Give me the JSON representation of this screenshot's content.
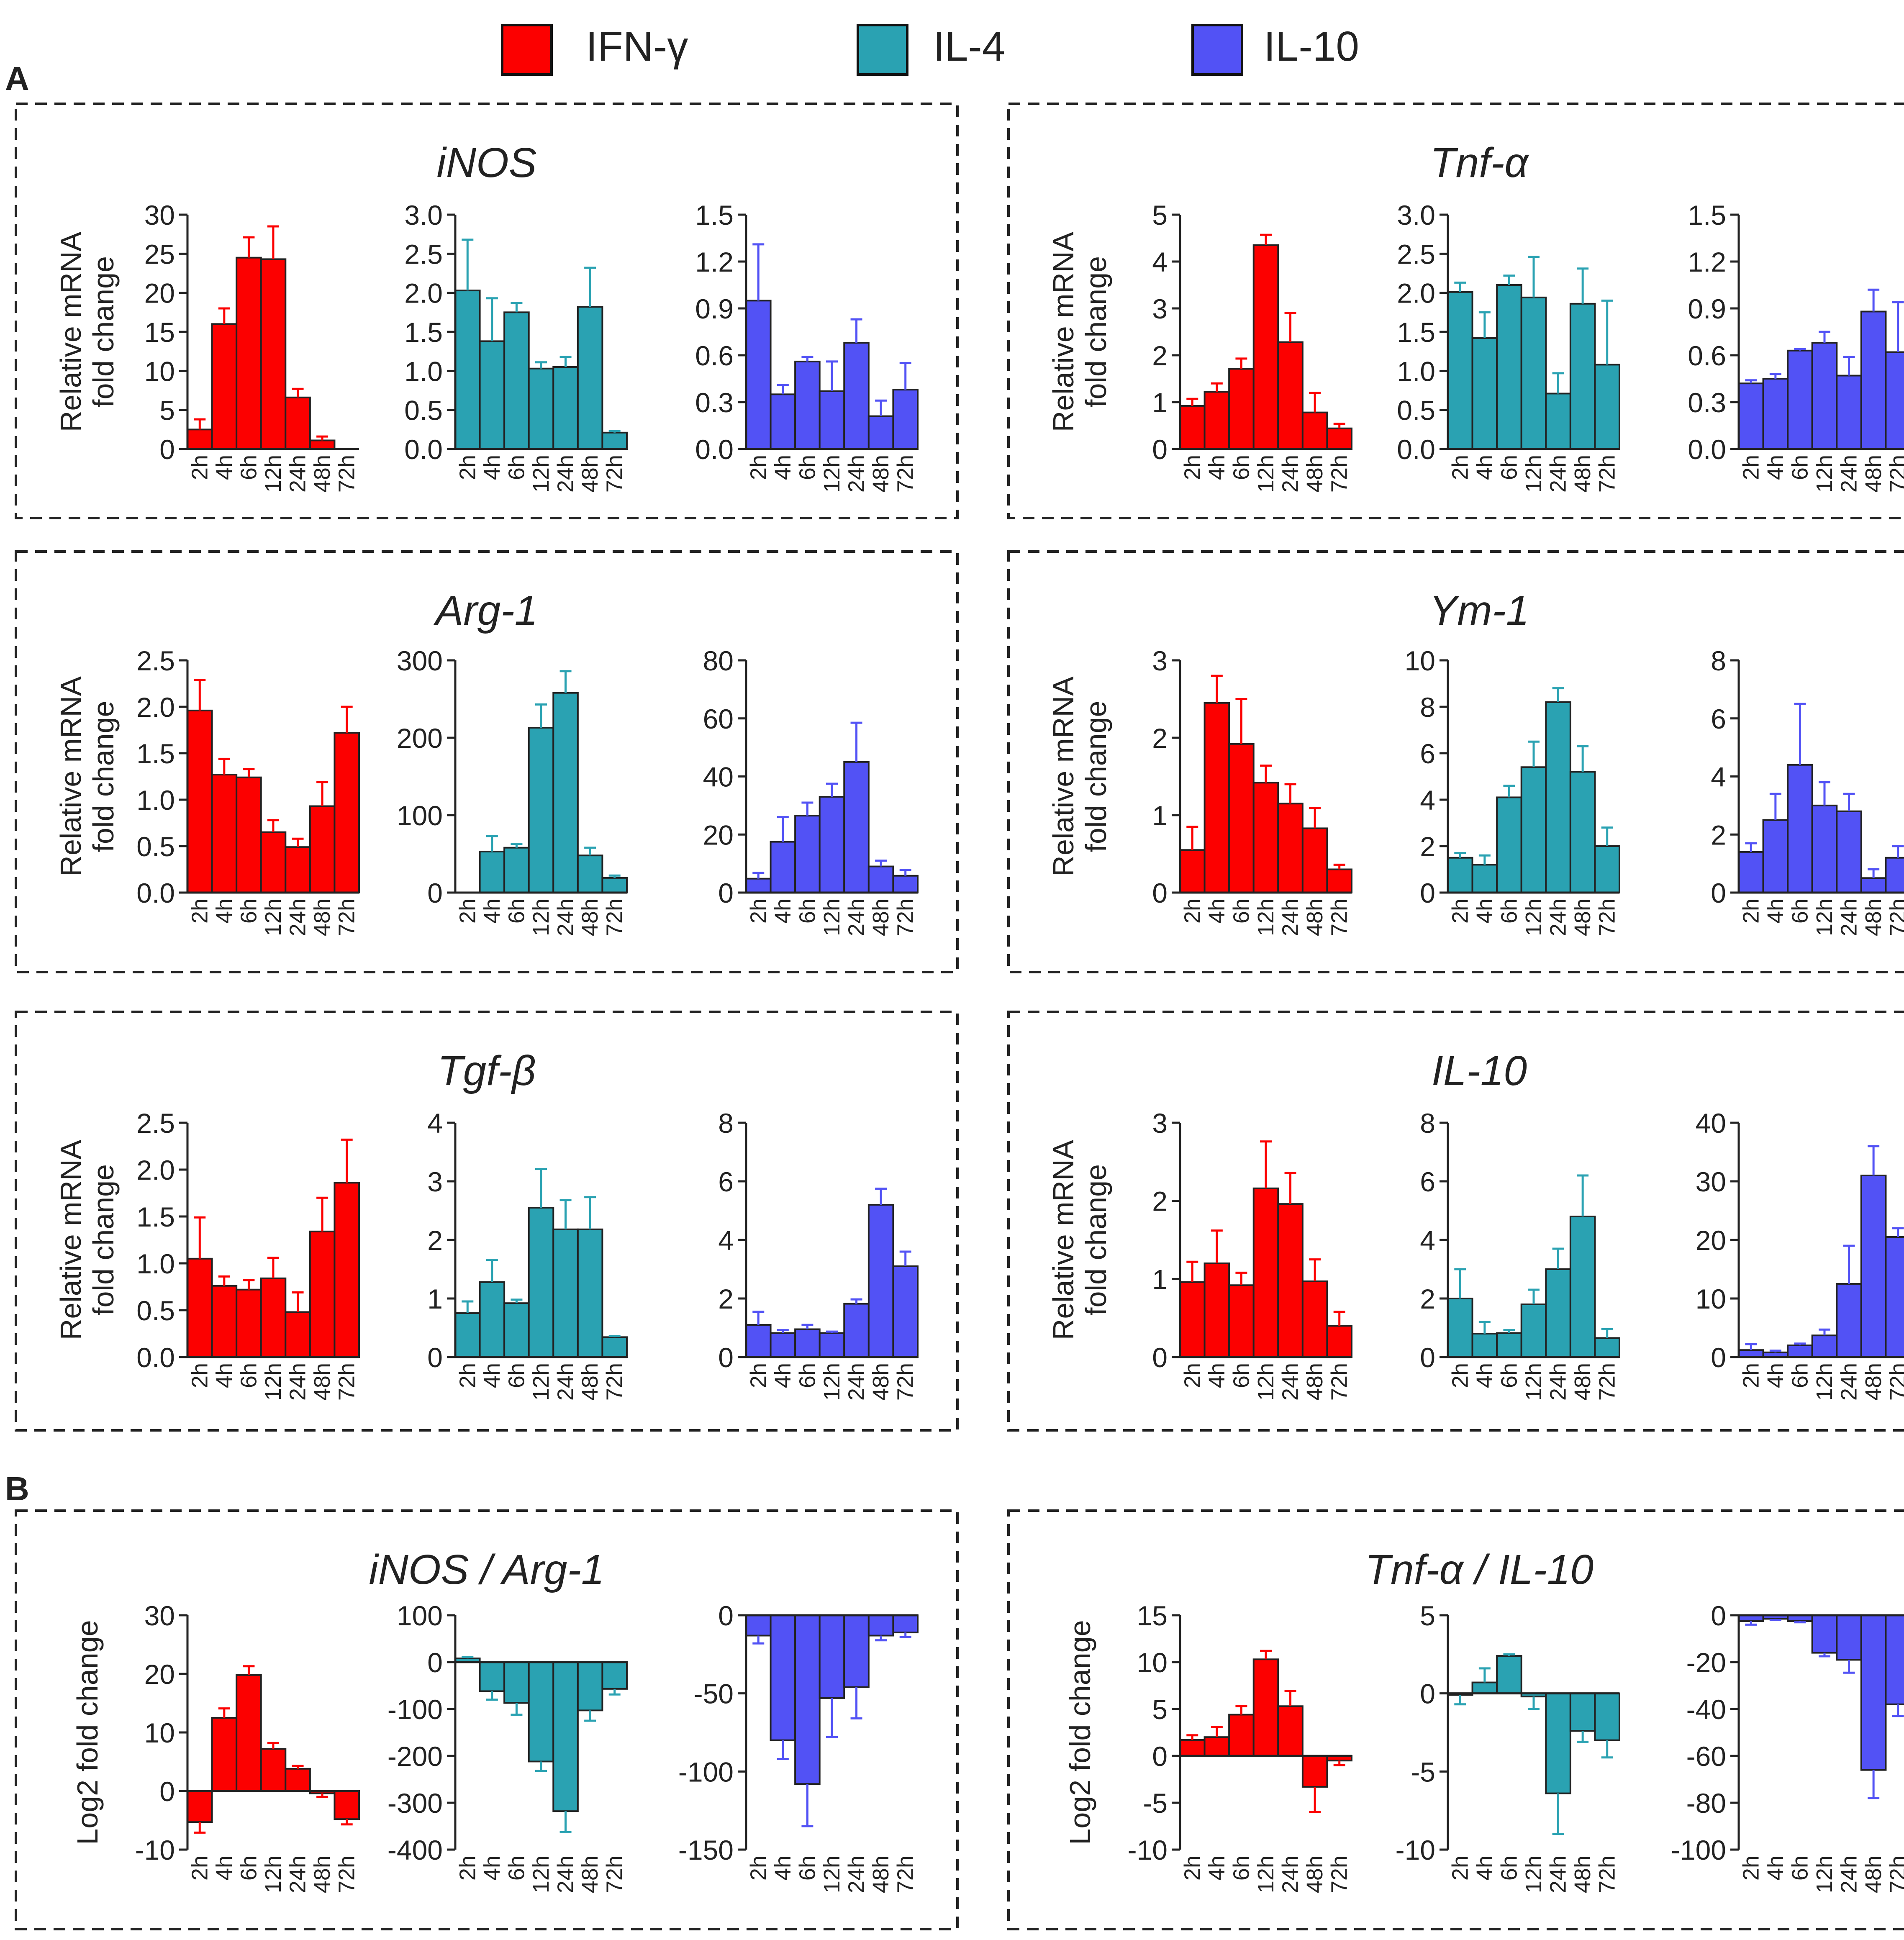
{
  "legend": {
    "entries": [
      {
        "name": "IFN-γ",
        "color": "#fc0000"
      },
      {
        "name": "IL-4",
        "color": "#2aa2b2"
      },
      {
        "name": "IL-10",
        "color": "#5252f5"
      }
    ]
  },
  "section_labels": [
    "A",
    "B"
  ],
  "ylabels": {
    "relative": [
      "Relative mRNA",
      "fold change"
    ],
    "log2": "Log2 fold change"
  },
  "categories": [
    "2h",
    "4h",
    "6h",
    "12h",
    "24h",
    "48h",
    "72h"
  ],
  "panels": [
    {
      "title": "iNOS",
      "col": 0,
      "row": 0,
      "ylabel": "relative"
    },
    {
      "title": "Tnf-α",
      "col": 1,
      "row": 0,
      "ylabel": "relative"
    },
    {
      "title": "Arg-1",
      "col": 0,
      "row": 1,
      "ylabel": "relative"
    },
    {
      "title": "Ym-1",
      "col": 1,
      "row": 1,
      "ylabel": "relative"
    },
    {
      "title": "Tgf-β",
      "col": 0,
      "row": 2,
      "ylabel": "relative"
    },
    {
      "title": "IL-10",
      "col": 1,
      "row": 2,
      "ylabel": "relative"
    },
    {
      "title": "iNOS / Arg-1",
      "col": 0,
      "row": 3,
      "ylabel": "log2"
    },
    {
      "title": "Tnf-α / IL-10",
      "col": 1,
      "row": 3,
      "ylabel": "log2"
    }
  ],
  "chart_data": [
    {
      "type": "bar",
      "panel": 0,
      "sub": 0,
      "series": "IFN-γ",
      "ylim": [
        0,
        30
      ],
      "ticks": [
        0,
        5,
        10,
        15,
        20,
        25,
        30
      ],
      "tick_labels": [
        "0",
        "5",
        "10",
        "15",
        "20",
        "25",
        "30"
      ],
      "values": [
        2.5,
        16,
        24.5,
        24.3,
        6.6,
        1.1,
        0
      ],
      "errors": [
        1.3,
        2,
        2.6,
        4.2,
        1.1,
        0.5,
        0
      ]
    },
    {
      "type": "bar",
      "panel": 0,
      "sub": 1,
      "series": "IL-4",
      "ylim": [
        0,
        3
      ],
      "ticks": [
        0,
        0.5,
        1,
        1.5,
        2,
        2.5,
        3
      ],
      "tick_labels": [
        "0.0",
        "0.5",
        "1.0",
        "1.5",
        "2.0",
        "2.5",
        "3.0"
      ],
      "values": [
        2.03,
        1.38,
        1.75,
        1.03,
        1.05,
        1.82,
        0.21
      ],
      "errors": [
        0.65,
        0.55,
        0.12,
        0.08,
        0.13,
        0.5,
        0.02
      ]
    },
    {
      "type": "bar",
      "panel": 0,
      "sub": 2,
      "series": "IL-10",
      "ylim": [
        0,
        1.5
      ],
      "ticks": [
        0,
        0.3,
        0.6,
        0.9,
        1.2,
        1.5
      ],
      "tick_labels": [
        "0.0",
        "0.3",
        "0.6",
        "0.9",
        "1.2",
        "1.5"
      ],
      "values": [
        0.95,
        0.35,
        0.56,
        0.37,
        0.68,
        0.21,
        0.38
      ],
      "errors": [
        0.36,
        0.06,
        0.03,
        0.19,
        0.15,
        0.1,
        0.17
      ]
    },
    {
      "type": "bar",
      "panel": 1,
      "sub": 0,
      "series": "IFN-γ",
      "ylim": [
        0,
        5
      ],
      "ticks": [
        0,
        1,
        2,
        3,
        4,
        5
      ],
      "tick_labels": [
        "0",
        "1",
        "2",
        "3",
        "4",
        "5"
      ],
      "values": [
        0.92,
        1.22,
        1.71,
        4.35,
        2.28,
        0.78,
        0.44
      ],
      "errors": [
        0.15,
        0.18,
        0.22,
        0.22,
        0.62,
        0.42,
        0.1
      ]
    },
    {
      "type": "bar",
      "panel": 1,
      "sub": 1,
      "series": "IL-4",
      "ylim": [
        0,
        3
      ],
      "ticks": [
        0,
        0.5,
        1,
        1.5,
        2,
        2.5,
        3
      ],
      "tick_labels": [
        "0.0",
        "0.5",
        "1.0",
        "1.5",
        "2.0",
        "2.5",
        "3.0"
      ],
      "values": [
        2.01,
        1.42,
        2.1,
        1.94,
        0.71,
        1.86,
        1.08
      ],
      "errors": [
        0.12,
        0.33,
        0.12,
        0.52,
        0.26,
        0.45,
        0.82
      ]
    },
    {
      "type": "bar",
      "panel": 1,
      "sub": 2,
      "series": "IL-10",
      "ylim": [
        0,
        1.5
      ],
      "ticks": [
        0,
        0.3,
        0.6,
        0.9,
        1.2,
        1.5
      ],
      "tick_labels": [
        "0.0",
        "0.3",
        "0.6",
        "0.9",
        "1.2",
        "1.5"
      ],
      "values": [
        0.42,
        0.45,
        0.63,
        0.68,
        0.47,
        0.88,
        0.62
      ],
      "errors": [
        0.02,
        0.03,
        0.01,
        0.07,
        0.12,
        0.14,
        0.32
      ]
    },
    {
      "type": "bar",
      "panel": 2,
      "sub": 0,
      "series": "IFN-γ",
      "ylim": [
        0,
        2.5
      ],
      "ticks": [
        0,
        0.5,
        1,
        1.5,
        2,
        2.5
      ],
      "tick_labels": [
        "0.0",
        "0.5",
        "1.0",
        "1.5",
        "2.0",
        "2.5"
      ],
      "values": [
        1.96,
        1.27,
        1.24,
        0.65,
        0.49,
        0.93,
        1.72
      ],
      "errors": [
        0.33,
        0.17,
        0.09,
        0.13,
        0.09,
        0.26,
        0.28
      ]
    },
    {
      "type": "bar",
      "panel": 2,
      "sub": 1,
      "series": "IL-4",
      "ylim": [
        0,
        300
      ],
      "ticks": [
        0,
        100,
        200,
        300
      ],
      "tick_labels": [
        "0",
        "100",
        "200",
        "300"
      ],
      "values": [
        0,
        53,
        58,
        213,
        258,
        48,
        19
      ],
      "errors": [
        0,
        20,
        5,
        30,
        28,
        10,
        3
      ]
    },
    {
      "type": "bar",
      "panel": 2,
      "sub": 2,
      "series": "IL-10",
      "ylim": [
        0,
        80
      ],
      "ticks": [
        0,
        20,
        40,
        60,
        80
      ],
      "tick_labels": [
        "0",
        "20",
        "40",
        "60",
        "80"
      ],
      "values": [
        4.8,
        17.5,
        26.5,
        33,
        45,
        9,
        5.8
      ],
      "errors": [
        2,
        8.5,
        4.5,
        4.5,
        13.5,
        2,
        2
      ]
    },
    {
      "type": "bar",
      "panel": 3,
      "sub": 0,
      "series": "IFN-γ",
      "ylim": [
        0,
        3
      ],
      "ticks": [
        0,
        1,
        2,
        3
      ],
      "tick_labels": [
        "0",
        "1",
        "2",
        "3"
      ],
      "values": [
        0.55,
        2.45,
        1.92,
        1.42,
        1.15,
        0.83,
        0.3
      ],
      "errors": [
        0.3,
        0.35,
        0.58,
        0.22,
        0.25,
        0.26,
        0.06
      ]
    },
    {
      "type": "bar",
      "panel": 3,
      "sub": 1,
      "series": "IL-4",
      "ylim": [
        0,
        10
      ],
      "ticks": [
        0,
        2,
        4,
        6,
        8,
        10
      ],
      "tick_labels": [
        "0",
        "2",
        "4",
        "6",
        "8",
        "10"
      ],
      "values": [
        1.5,
        1.2,
        4.1,
        5.4,
        8.2,
        5.2,
        2.0
      ],
      "errors": [
        0.2,
        0.4,
        0.5,
        1.1,
        0.6,
        1.1,
        0.8
      ]
    },
    {
      "type": "bar",
      "panel": 3,
      "sub": 2,
      "series": "IL-10",
      "ylim": [
        0,
        8
      ],
      "ticks": [
        0,
        2,
        4,
        6,
        8
      ],
      "tick_labels": [
        "0",
        "2",
        "4",
        "6",
        "8"
      ],
      "values": [
        1.4,
        2.5,
        4.4,
        3.0,
        2.8,
        0.5,
        1.2
      ],
      "errors": [
        0.3,
        0.9,
        2.1,
        0.8,
        0.6,
        0.3,
        0.4
      ]
    },
    {
      "type": "bar",
      "panel": 4,
      "sub": 0,
      "series": "IFN-γ",
      "ylim": [
        0,
        2.5
      ],
      "ticks": [
        0,
        0.5,
        1,
        1.5,
        2,
        2.5
      ],
      "tick_labels": [
        "0.0",
        "0.5",
        "1.0",
        "1.5",
        "2.0",
        "2.5"
      ],
      "values": [
        1.05,
        0.76,
        0.72,
        0.84,
        0.48,
        1.34,
        1.86
      ],
      "errors": [
        0.44,
        0.1,
        0.1,
        0.22,
        0.21,
        0.36,
        0.46
      ]
    },
    {
      "type": "bar",
      "panel": 4,
      "sub": 1,
      "series": "IL-4",
      "ylim": [
        0,
        4
      ],
      "ticks": [
        0,
        1,
        2,
        3,
        4
      ],
      "tick_labels": [
        "0",
        "1",
        "2",
        "3",
        "4"
      ],
      "values": [
        0.75,
        1.28,
        0.92,
        2.55,
        2.18,
        2.18,
        0.34
      ],
      "errors": [
        0.2,
        0.38,
        0.06,
        0.66,
        0.5,
        0.55,
        0.02
      ]
    },
    {
      "type": "bar",
      "panel": 4,
      "sub": 2,
      "series": "IL-10",
      "ylim": [
        0,
        8
      ],
      "ticks": [
        0,
        2,
        4,
        6,
        8
      ],
      "tick_labels": [
        "0",
        "2",
        "4",
        "6",
        "8"
      ],
      "values": [
        1.1,
        0.82,
        0.95,
        0.82,
        1.82,
        5.2,
        3.1
      ],
      "errors": [
        0.45,
        0.1,
        0.15,
        0.05,
        0.15,
        0.55,
        0.5
      ]
    },
    {
      "type": "bar",
      "panel": 5,
      "sub": 0,
      "series": "IFN-γ",
      "ylim": [
        0,
        3
      ],
      "ticks": [
        0,
        1,
        2,
        3
      ],
      "tick_labels": [
        "0",
        "1",
        "2",
        "3"
      ],
      "values": [
        0.96,
        1.2,
        0.92,
        2.16,
        1.96,
        0.97,
        0.4
      ],
      "errors": [
        0.26,
        0.42,
        0.16,
        0.6,
        0.4,
        0.28,
        0.18
      ]
    },
    {
      "type": "bar",
      "panel": 5,
      "sub": 1,
      "series": "IL-4",
      "ylim": [
        0,
        8
      ],
      "ticks": [
        0,
        2,
        4,
        6,
        8
      ],
      "tick_labels": [
        "0",
        "2",
        "4",
        "6",
        "8"
      ],
      "values": [
        2.0,
        0.8,
        0.82,
        1.8,
        3.0,
        4.8,
        0.65
      ],
      "errors": [
        1.0,
        0.4,
        0.1,
        0.5,
        0.7,
        1.4,
        0.3
      ]
    },
    {
      "type": "bar",
      "panel": 5,
      "sub": 2,
      "series": "IL-10",
      "ylim": [
        0,
        40
      ],
      "ticks": [
        0,
        10,
        20,
        30,
        40
      ],
      "tick_labels": [
        "0",
        "10",
        "20",
        "30",
        "40"
      ],
      "values": [
        1.2,
        0.8,
        2.0,
        3.7,
        12.5,
        31,
        20.5
      ],
      "errors": [
        1.0,
        0.3,
        0.3,
        1.0,
        6.5,
        5,
        1.5
      ]
    },
    {
      "type": "bar",
      "panel": 6,
      "sub": 0,
      "series": "IFN-γ",
      "ylim": [
        -10,
        30
      ],
      "ticks": [
        -10,
        0,
        10,
        20,
        30
      ],
      "tick_labels": [
        "-10",
        "0",
        "10",
        "20",
        "30"
      ],
      "values": [
        -5.3,
        12.5,
        19.8,
        7.2,
        3.8,
        -0.4,
        -4.8
      ],
      "errors": [
        1.8,
        1.6,
        1.5,
        1.0,
        0.5,
        0.6,
        0.9
      ]
    },
    {
      "type": "bar",
      "panel": 6,
      "sub": 1,
      "series": "IL-4",
      "ylim": [
        -400,
        100
      ],
      "ticks": [
        -400,
        -300,
        -200,
        -100,
        0,
        100
      ],
      "tick_labels": [
        "-400",
        "-300",
        "-200",
        "-100",
        "0",
        "100"
      ],
      "values": [
        8,
        -62,
        -87,
        -212,
        -318,
        -103,
        -57
      ],
      "errors": [
        3,
        18,
        25,
        20,
        45,
        22,
        12
      ]
    },
    {
      "type": "bar",
      "panel": 6,
      "sub": 2,
      "series": "IL-10",
      "ylim": [
        -150,
        0
      ],
      "ticks": [
        -150,
        -100,
        -50,
        0
      ],
      "tick_labels": [
        "-150",
        "-100",
        "-50",
        "0"
      ],
      "values": [
        -13,
        -80,
        -108,
        -53,
        -46,
        -13,
        -11
      ],
      "errors": [
        5,
        12,
        27,
        25,
        20,
        3,
        3
      ]
    },
    {
      "type": "bar",
      "panel": 7,
      "sub": 0,
      "series": "IFN-γ",
      "ylim": [
        -10,
        15
      ],
      "ticks": [
        -10,
        -5,
        0,
        5,
        10,
        15
      ],
      "tick_labels": [
        "-10",
        "-5",
        "0",
        "5",
        "10",
        "15"
      ],
      "values": [
        1.7,
        2.0,
        4.4,
        10.3,
        5.3,
        -3.3,
        -0.5
      ],
      "errors": [
        0.5,
        1.1,
        0.9,
        0.9,
        1.6,
        2.7,
        0.5
      ]
    },
    {
      "type": "bar",
      "panel": 7,
      "sub": 1,
      "series": "IL-4",
      "ylim": [
        -10,
        5
      ],
      "ticks": [
        -10,
        -5,
        0,
        5
      ],
      "tick_labels": [
        "-10",
        "-5",
        "0",
        "5"
      ],
      "values": [
        -0.1,
        0.7,
        2.4,
        -0.2,
        -6.4,
        -2.4,
        -3.0
      ],
      "errors": [
        0.6,
        0.9,
        0.1,
        0.8,
        2.6,
        0.7,
        1.1
      ]
    },
    {
      "type": "bar",
      "panel": 7,
      "sub": 2,
      "series": "IL-10",
      "ylim": [
        -100,
        0
      ],
      "ticks": [
        -100,
        -80,
        -60,
        -40,
        -20,
        0
      ],
      "tick_labels": [
        "-100",
        "-80",
        "-60",
        "-40",
        "-20",
        "0"
      ],
      "values": [
        -2.5,
        -1.5,
        -2.5,
        -16,
        -19,
        -66,
        -38
      ],
      "errors": [
        1.5,
        0.5,
        0.5,
        1.5,
        5.5,
        12,
        5
      ]
    }
  ]
}
